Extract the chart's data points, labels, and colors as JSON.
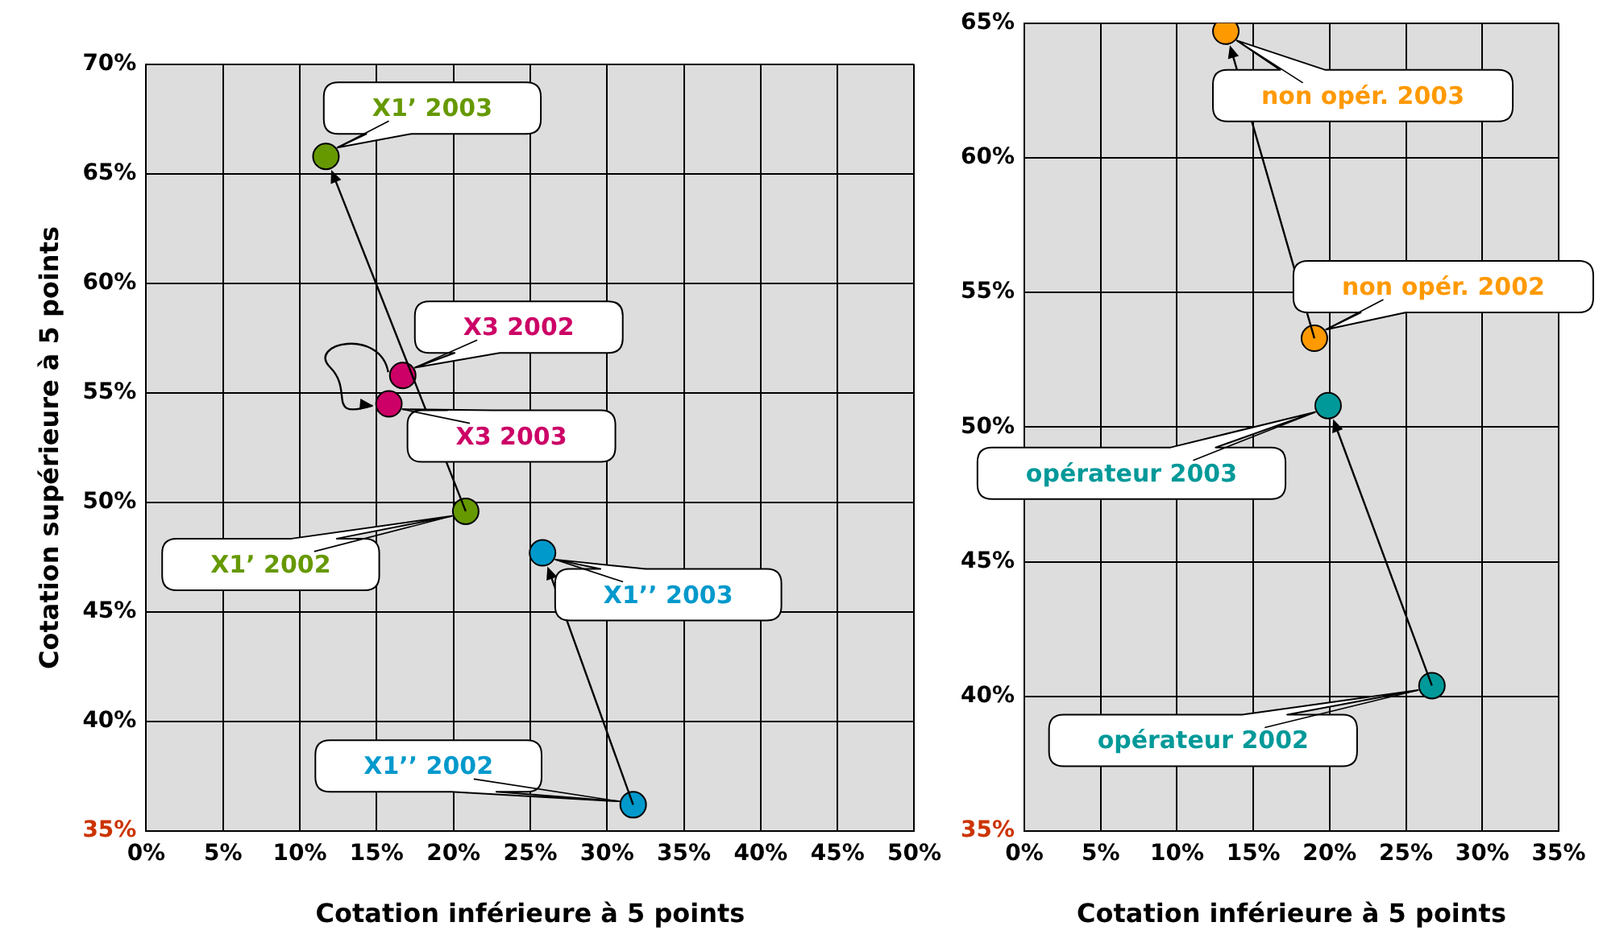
{
  "chart_data": [
    {
      "type": "scatter",
      "xlabel": "Cotation inférieure à 5 points",
      "ylabel": "Cotation supérieure à 5 points",
      "xlim": [
        0,
        50
      ],
      "xticks": [
        {
          "value": 0,
          "label": "0%"
        },
        {
          "value": 5,
          "label": "5%"
        },
        {
          "value": 10,
          "label": "10%"
        },
        {
          "value": 15,
          "label": "15%"
        },
        {
          "value": 20,
          "label": "20%"
        },
        {
          "value": 25,
          "label": "25%"
        },
        {
          "value": 30,
          "label": "30%"
        },
        {
          "value": 35,
          "label": "35%"
        },
        {
          "value": 40,
          "label": "40%"
        },
        {
          "value": 45,
          "label": "45%"
        },
        {
          "value": 50,
          "label": "50%"
        }
      ],
      "ylim": [
        35,
        70
      ],
      "yticks": [
        {
          "value": 35,
          "label": "35%"
        },
        {
          "value": 40,
          "label": "40%"
        },
        {
          "value": 45,
          "label": "45%"
        },
        {
          "value": 50,
          "label": "50%"
        },
        {
          "value": 55,
          "label": "55%"
        },
        {
          "value": 60,
          "label": "60%"
        },
        {
          "value": 65,
          "label": "65%"
        },
        {
          "value": 70,
          "label": "70%"
        }
      ],
      "grid": true,
      "legend": false,
      "marker": "circle",
      "series": [
        {
          "color": "#669900",
          "x": [
            20.8,
            11.7
          ],
          "values": [
            49.6,
            65.8
          ]
        },
        {
          "color": "#cc0066",
          "x": [
            16.7,
            15.8
          ],
          "values": [
            55.8,
            54.5
          ]
        },
        {
          "color": "#0099cc",
          "x": [
            31.7,
            25.8
          ],
          "values": [
            36.2,
            47.7
          ]
        }
      ],
      "annotations": [
        {
          "text": "X1’ 2003",
          "x": 11.7,
          "y": 65.8
        },
        {
          "text": "X3 2002",
          "x": 16.7,
          "y": 55.8
        },
        {
          "text": "X3 2003",
          "x": 15.8,
          "y": 54.5
        },
        {
          "text": "X1’ 2002",
          "x": 20.8,
          "y": 49.6
        },
        {
          "text": "X1’’ 2003",
          "x": 25.8,
          "y": 47.7
        },
        {
          "text": "X1’’ 2002",
          "x": 31.7,
          "y": 36.2
        }
      ]
    },
    {
      "type": "scatter",
      "xlabel": "Cotation inférieure à 5 points",
      "xlim": [
        0,
        35
      ],
      "xticks": [
        {
          "value": 0,
          "label": "0%"
        },
        {
          "value": 5,
          "label": "5%"
        },
        {
          "value": 10,
          "label": "10%"
        },
        {
          "value": 15,
          "label": "15%"
        },
        {
          "value": 20,
          "label": "20%"
        },
        {
          "value": 25,
          "label": "25%"
        },
        {
          "value": 30,
          "label": "30%"
        },
        {
          "value": 35,
          "label": "35%"
        }
      ],
      "ylim": [
        35,
        65
      ],
      "yticks": [
        {
          "value": 35,
          "label": "35%"
        },
        {
          "value": 40,
          "label": "40%"
        },
        {
          "value": 45,
          "label": "45%"
        },
        {
          "value": 50,
          "label": "50%"
        },
        {
          "value": 55,
          "label": "55%"
        },
        {
          "value": 60,
          "label": "60%"
        },
        {
          "value": 65,
          "label": "65%"
        }
      ],
      "grid": true,
      "legend": false,
      "marker": "circle",
      "series": [
        {
          "color": "#ff9900",
          "x": [
            19.0,
            13.2
          ],
          "values": [
            53.3,
            64.7
          ]
        },
        {
          "color": "#009999",
          "x": [
            26.7,
            19.9
          ],
          "values": [
            40.4,
            50.8
          ]
        }
      ],
      "annotations": [
        {
          "text": "non opér. 2003",
          "x": 13.2,
          "y": 64.7
        },
        {
          "text": "non opér. 2002",
          "x": 19.0,
          "y": 53.3
        },
        {
          "text": "opérateur 2003",
          "x": 19.9,
          "y": 50.8
        },
        {
          "text": "opérateur 2002",
          "x": 26.7,
          "y": 40.4
        }
      ]
    }
  ]
}
